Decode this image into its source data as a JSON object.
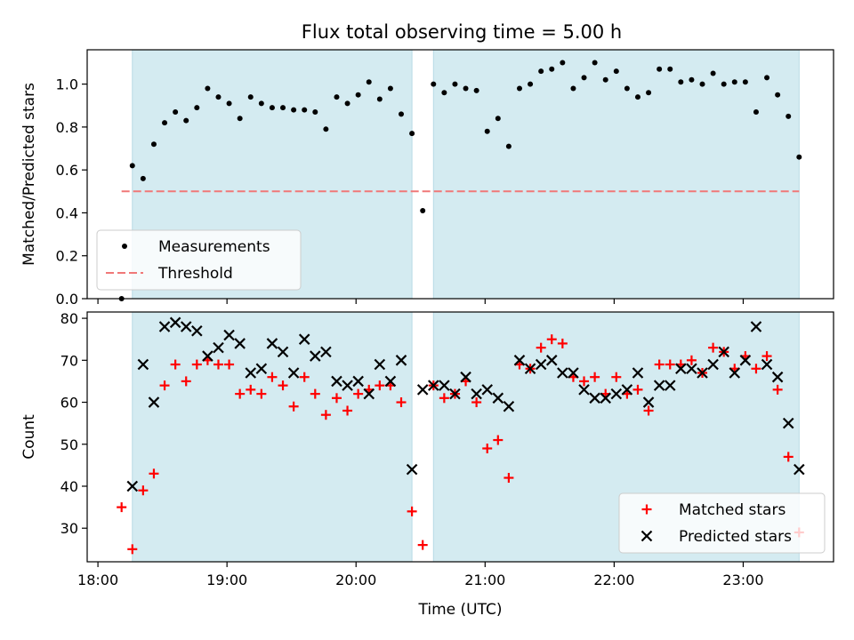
{
  "title": "Flux total observing time = 5.00 h",
  "colors": {
    "shade": "#d4ebf1",
    "threshold": "#f07878",
    "measurement": "#000000",
    "matched": "#ff0000",
    "predicted": "#000000"
  },
  "chart_data": [
    {
      "type": "scatter",
      "ylabel": "Matched/Predicted stars",
      "xlim": [
        "17:55",
        "23:42"
      ],
      "ylim": [
        0,
        1.16
      ],
      "yticks": [
        "0.0",
        "0.2",
        "0.4",
        "0.6",
        "0.8",
        "1.0"
      ],
      "legend": "lower-left",
      "observing_windows": [
        [
          "18:16",
          "20:26"
        ],
        [
          "20:36",
          "23:26"
        ]
      ],
      "threshold": {
        "name": "Threshold",
        "y": 0.5,
        "x": [
          "18:11",
          "23:26"
        ]
      },
      "series": [
        {
          "name": "Measurements",
          "marker": "dot",
          "points": [
            [
              "18:11",
              0.0
            ],
            [
              "18:16",
              0.62
            ],
            [
              "18:21",
              0.56
            ],
            [
              "18:26",
              0.72
            ],
            [
              "18:31",
              0.82
            ],
            [
              "18:36",
              0.87
            ],
            [
              "18:41",
              0.83
            ],
            [
              "18:46",
              0.89
            ],
            [
              "18:51",
              0.98
            ],
            [
              "18:56",
              0.94
            ],
            [
              "19:01",
              0.91
            ],
            [
              "19:06",
              0.84
            ],
            [
              "19:11",
              0.94
            ],
            [
              "19:16",
              0.91
            ],
            [
              "19:21",
              0.89
            ],
            [
              "19:26",
              0.89
            ],
            [
              "19:31",
              0.88
            ],
            [
              "19:36",
              0.88
            ],
            [
              "19:41",
              0.87
            ],
            [
              "19:46",
              0.79
            ],
            [
              "19:51",
              0.94
            ],
            [
              "19:56",
              0.91
            ],
            [
              "20:01",
              0.95
            ],
            [
              "20:06",
              1.01
            ],
            [
              "20:11",
              0.93
            ],
            [
              "20:16",
              0.98
            ],
            [
              "20:21",
              0.86
            ],
            [
              "20:26",
              0.77
            ],
            [
              "20:31",
              0.41
            ],
            [
              "20:36",
              1.0
            ],
            [
              "20:41",
              0.96
            ],
            [
              "20:46",
              1.0
            ],
            [
              "20:51",
              0.98
            ],
            [
              "20:56",
              0.97
            ],
            [
              "21:01",
              0.78
            ],
            [
              "21:06",
              0.84
            ],
            [
              "21:11",
              0.71
            ],
            [
              "21:16",
              0.98
            ],
            [
              "21:21",
              1.0
            ],
            [
              "21:26",
              1.06
            ],
            [
              "21:31",
              1.07
            ],
            [
              "21:36",
              1.1
            ],
            [
              "21:41",
              0.98
            ],
            [
              "21:46",
              1.03
            ],
            [
              "21:51",
              1.1
            ],
            [
              "21:56",
              1.02
            ],
            [
              "22:01",
              1.06
            ],
            [
              "22:06",
              0.98
            ],
            [
              "22:11",
              0.94
            ],
            [
              "22:16",
              0.96
            ],
            [
              "22:21",
              1.07
            ],
            [
              "22:26",
              1.07
            ],
            [
              "22:31",
              1.01
            ],
            [
              "22:36",
              1.02
            ],
            [
              "22:41",
              1.0
            ],
            [
              "22:46",
              1.05
            ],
            [
              "22:51",
              1.0
            ],
            [
              "22:56",
              1.01
            ],
            [
              "23:01",
              1.01
            ],
            [
              "23:06",
              0.87
            ],
            [
              "23:11",
              1.03
            ],
            [
              "23:16",
              0.95
            ],
            [
              "23:21",
              0.85
            ],
            [
              "23:26",
              0.66
            ]
          ]
        }
      ]
    },
    {
      "type": "scatter",
      "xlabel": "Time (UTC)",
      "ylabel": "Count",
      "xlim": [
        "17:55",
        "23:42"
      ],
      "ylim": [
        22,
        81.5
      ],
      "yticks": [
        "30",
        "40",
        "50",
        "60",
        "70",
        "80"
      ],
      "xticks": [
        "18:00",
        "19:00",
        "20:00",
        "21:00",
        "22:00",
        "23:00"
      ],
      "legend": "lower-right",
      "observing_windows": [
        [
          "18:16",
          "20:26"
        ],
        [
          "20:36",
          "23:26"
        ]
      ],
      "series": [
        {
          "name": "Matched stars",
          "marker": "plus",
          "points": [
            [
              "18:11",
              35
            ],
            [
              "18:16",
              25
            ],
            [
              "18:21",
              39
            ],
            [
              "18:26",
              43
            ],
            [
              "18:31",
              64
            ],
            [
              "18:36",
              69
            ],
            [
              "18:41",
              65
            ],
            [
              "18:46",
              69
            ],
            [
              "18:51",
              70
            ],
            [
              "18:56",
              69
            ],
            [
              "19:01",
              69
            ],
            [
              "19:06",
              62
            ],
            [
              "19:11",
              63
            ],
            [
              "19:16",
              62
            ],
            [
              "19:21",
              66
            ],
            [
              "19:26",
              64
            ],
            [
              "19:31",
              59
            ],
            [
              "19:36",
              66
            ],
            [
              "19:41",
              62
            ],
            [
              "19:46",
              57
            ],
            [
              "19:51",
              61
            ],
            [
              "19:56",
              58
            ],
            [
              "20:01",
              62
            ],
            [
              "20:06",
              63
            ],
            [
              "20:11",
              64
            ],
            [
              "20:16",
              64
            ],
            [
              "20:21",
              60
            ],
            [
              "20:26",
              34
            ],
            [
              "20:31",
              26
            ],
            [
              "20:36",
              64
            ],
            [
              "20:41",
              61
            ],
            [
              "20:46",
              62
            ],
            [
              "20:51",
              65
            ],
            [
              "20:56",
              60
            ],
            [
              "21:01",
              49
            ],
            [
              "21:06",
              51
            ],
            [
              "21:11",
              42
            ],
            [
              "21:16",
              69
            ],
            [
              "21:21",
              68
            ],
            [
              "21:26",
              73
            ],
            [
              "21:31",
              75
            ],
            [
              "21:36",
              74
            ],
            [
              "21:41",
              66
            ],
            [
              "21:46",
              65
            ],
            [
              "21:51",
              66
            ],
            [
              "21:56",
              62
            ],
            [
              "22:01",
              66
            ],
            [
              "22:06",
              62
            ],
            [
              "22:11",
              63
            ],
            [
              "22:16",
              58
            ],
            [
              "22:21",
              69
            ],
            [
              "22:26",
              69
            ],
            [
              "22:31",
              69
            ],
            [
              "22:36",
              70
            ],
            [
              "22:41",
              67
            ],
            [
              "22:46",
              73
            ],
            [
              "22:51",
              72
            ],
            [
              "22:56",
              68
            ],
            [
              "23:01",
              71
            ],
            [
              "23:06",
              68
            ],
            [
              "23:11",
              71
            ],
            [
              "23:16",
              63
            ],
            [
              "23:21",
              47
            ],
            [
              "23:26",
              29
            ]
          ]
        },
        {
          "name": "Predicted stars",
          "marker": "x",
          "points": [
            [
              "18:16",
              40
            ],
            [
              "18:21",
              69
            ],
            [
              "18:26",
              60
            ],
            [
              "18:31",
              78
            ],
            [
              "18:36",
              79
            ],
            [
              "18:41",
              78
            ],
            [
              "18:46",
              77
            ],
            [
              "18:51",
              71
            ],
            [
              "18:56",
              73
            ],
            [
              "19:01",
              76
            ],
            [
              "19:06",
              74
            ],
            [
              "19:11",
              67
            ],
            [
              "19:16",
              68
            ],
            [
              "19:21",
              74
            ],
            [
              "19:26",
              72
            ],
            [
              "19:31",
              67
            ],
            [
              "19:36",
              75
            ],
            [
              "19:41",
              71
            ],
            [
              "19:46",
              72
            ],
            [
              "19:51",
              65
            ],
            [
              "19:56",
              64
            ],
            [
              "20:01",
              65
            ],
            [
              "20:06",
              62
            ],
            [
              "20:11",
              69
            ],
            [
              "20:16",
              65
            ],
            [
              "20:21",
              70
            ],
            [
              "20:26",
              44
            ],
            [
              "20:31",
              63
            ],
            [
              "20:36",
              64
            ],
            [
              "20:41",
              64
            ],
            [
              "20:46",
              62
            ],
            [
              "20:51",
              66
            ],
            [
              "20:56",
              62
            ],
            [
              "21:01",
              63
            ],
            [
              "21:06",
              61
            ],
            [
              "21:11",
              59
            ],
            [
              "21:16",
              70
            ],
            [
              "21:21",
              68
            ],
            [
              "21:26",
              69
            ],
            [
              "21:31",
              70
            ],
            [
              "21:36",
              67
            ],
            [
              "21:41",
              67
            ],
            [
              "21:46",
              63
            ],
            [
              "21:51",
              61
            ],
            [
              "21:56",
              61
            ],
            [
              "22:01",
              62
            ],
            [
              "22:06",
              63
            ],
            [
              "22:11",
              67
            ],
            [
              "22:16",
              60
            ],
            [
              "22:21",
              64
            ],
            [
              "22:26",
              64
            ],
            [
              "22:31",
              68
            ],
            [
              "22:36",
              68
            ],
            [
              "22:41",
              67
            ],
            [
              "22:46",
              69
            ],
            [
              "22:51",
              72
            ],
            [
              "22:56",
              67
            ],
            [
              "23:01",
              70
            ],
            [
              "23:06",
              78
            ],
            [
              "23:11",
              69
            ],
            [
              "23:16",
              66
            ],
            [
              "23:21",
              55
            ],
            [
              "23:26",
              44
            ]
          ]
        }
      ]
    }
  ]
}
